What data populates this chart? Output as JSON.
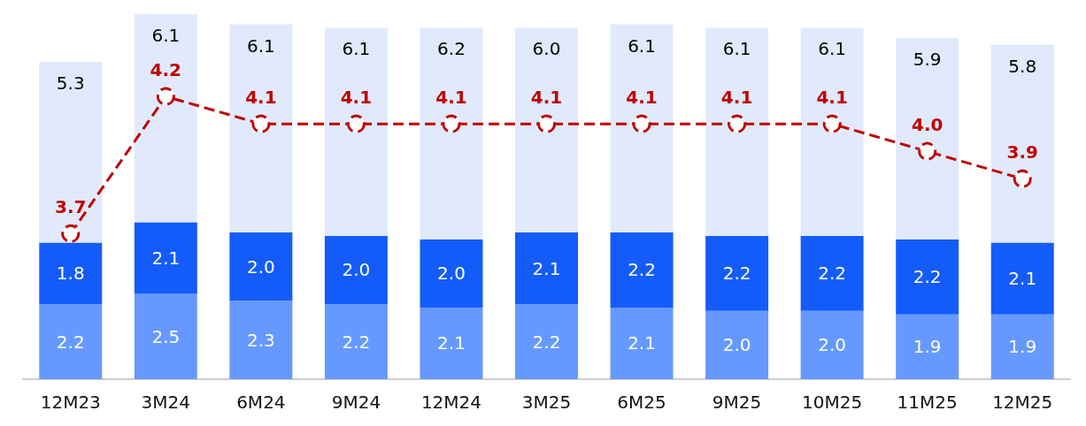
{
  "chart_data": {
    "type": "bar",
    "stacked": true,
    "tick_labels": "x",
    "grid": false,
    "categories": [
      "12M23",
      "3M24",
      "6M24",
      "9M24",
      "12M24",
      "3M25",
      "6M25",
      "9M25",
      "10M25",
      "11M25",
      "12M25"
    ],
    "ylim": [
      0,
      10.7
    ],
    "y2lim": [
      3.17,
      4.5
    ],
    "series": [
      {
        "color": "#6699ff",
        "values": [
          2.2,
          2.5,
          2.3,
          2.2,
          2.1,
          2.2,
          2.1,
          2.0,
          2.0,
          1.9,
          1.9
        ],
        "value_labels": [
          "2.2",
          "2.5",
          "2.3",
          "2.2",
          "2.1",
          "2.2",
          "2.1",
          "2.0",
          "2.0",
          "1.9",
          "1.9"
        ]
      },
      {
        "color": "#145cfa",
        "values": [
          1.8,
          2.1,
          2.0,
          2.0,
          2.0,
          2.1,
          2.2,
          2.2,
          2.2,
          2.2,
          2.1
        ],
        "value_labels": [
          "1.8",
          "2.1",
          "2.0",
          "2.0",
          "2.0",
          "2.1",
          "2.2",
          "2.2",
          "2.2",
          "2.2",
          "2.1"
        ]
      },
      {
        "color": "#e0eafc",
        "values": [
          5.3,
          6.1,
          6.1,
          6.1,
          6.2,
          6.0,
          6.1,
          6.1,
          6.1,
          5.9,
          5.8
        ],
        "value_labels": [
          "5.3",
          "6.1",
          "6.1",
          "6.1",
          "6.2",
          "6.0",
          "6.1",
          "6.1",
          "6.1",
          "5.9",
          "5.8"
        ]
      },
      {
        "type": "line",
        "axis": "y2",
        "color": "#c00000",
        "marker": "circle",
        "line_style": "dashed",
        "values": [
          3.7,
          4.2,
          4.1,
          4.1,
          4.1,
          4.1,
          4.1,
          4.1,
          4.1,
          4.0,
          3.9
        ],
        "value_labels": [
          "3.7",
          "4.2",
          "4.1",
          "4.1",
          "4.1",
          "4.1",
          "4.1",
          "4.1",
          "4.1",
          "4.0",
          "3.9"
        ]
      }
    ]
  }
}
